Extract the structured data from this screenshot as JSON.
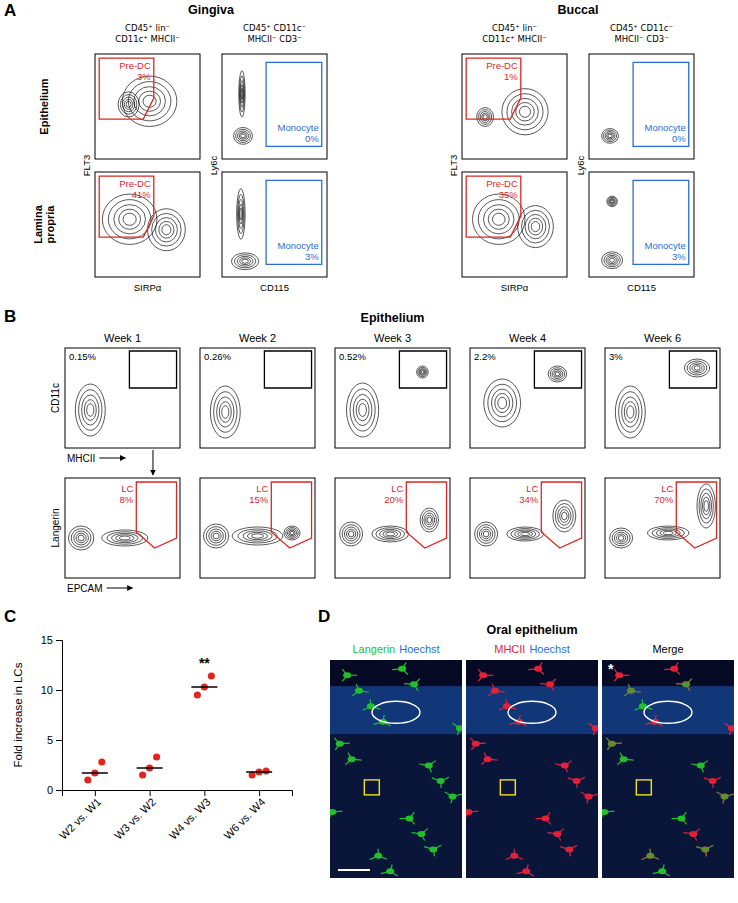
{
  "chart_data": {
    "type": "scatter",
    "panel": "C",
    "categories": [
      "W2 vs. W1",
      "W3 vs. W2",
      "W4 vs. W3",
      "W6 vs. W4"
    ],
    "values": [
      [
        1.0,
        1.7,
        2.8
      ],
      [
        1.5,
        2.2,
        3.3
      ],
      [
        9.5,
        10.3,
        11.4
      ],
      [
        1.5,
        1.8,
        1.9
      ]
    ],
    "medians": [
      1.7,
      2.2,
      10.3,
      1.8
    ],
    "ylabel": "Fold increase in LCs",
    "ylim": [
      0,
      15
    ],
    "yticks": [
      0,
      5,
      10,
      15
    ],
    "color": "#e0261f",
    "marker": "circle",
    "annotations": [
      {
        "text": "**",
        "category": "W4 vs. W3"
      }
    ]
  },
  "panel_a": {
    "label": "A",
    "xlim": [
      0,
      100
    ],
    "ylim": [
      0,
      100
    ],
    "tick_labels": false,
    "rows": [
      [
        "Epithelium"
      ],
      [
        "Lamina",
        "propria"
      ]
    ],
    "tissues": [
      {
        "title": "Gingiva",
        "columns": [
          {
            "header": [
              "CD45⁺ lin⁻",
              "CD11c⁺ MHCII⁻"
            ],
            "x_label": "SIRPα",
            "y_label": "FLT3",
            "gate_label": "Pre-DC",
            "gate_color": "#e0261f",
            "plots": [
              {
                "gate_value": "3%",
                "gate": [
                  [
                    4,
                    96
                  ],
                  [
                    56,
                    96
                  ],
                  [
                    56,
                    58
                  ],
                  [
                    46,
                    38
                  ],
                  [
                    4,
                    38
                  ]
                ],
                "populations": [
                  {
                    "x": 52,
                    "y": 55,
                    "rx": 26,
                    "ry": 24
                  },
                  {
                    "x": 32,
                    "y": 52,
                    "rx": 10,
                    "ry": 12
                  }
                ]
              },
              {
                "gate_value": "41%",
                "gate": [
                  [
                    4,
                    96
                  ],
                  [
                    56,
                    96
                  ],
                  [
                    56,
                    58
                  ],
                  [
                    46,
                    38
                  ],
                  [
                    4,
                    38
                  ]
                ],
                "populations": [
                  {
                    "x": 33,
                    "y": 55,
                    "rx": 26,
                    "ry": 24
                  },
                  {
                    "x": 68,
                    "y": 45,
                    "rx": 18,
                    "ry": 20
                  }
                ]
              }
            ]
          },
          {
            "header": [
              "CD45⁺ CD11c⁻",
              "MHCII⁻ CD3⁻"
            ],
            "x_label": "CD115",
            "y_label": "Ly6c",
            "gate_label": "Monocyte",
            "gate_color": "#2a6dd4",
            "plots": [
              {
                "gate_value": "0%",
                "gate": [
                  [
                    42,
                    92
                  ],
                  [
                    95,
                    92
                  ],
                  [
                    95,
                    12
                  ],
                  [
                    42,
                    12
                  ]
                ],
                "populations": [
                  {
                    "x": 20,
                    "y": 22,
                    "rx": 9,
                    "ry": 8
                  },
                  {
                    "x": 19,
                    "y": 62,
                    "rx": 3,
                    "ry": 22
                  }
                ]
              },
              {
                "gate_value": "3%",
                "gate": [
                  [
                    42,
                    92
                  ],
                  [
                    95,
                    92
                  ],
                  [
                    95,
                    12
                  ],
                  [
                    42,
                    12
                  ]
                ],
                "populations": [
                  {
                    "x": 22,
                    "y": 15,
                    "rx": 13,
                    "ry": 8
                  },
                  {
                    "x": 18,
                    "y": 60,
                    "rx": 4,
                    "ry": 24
                  }
                ]
              }
            ]
          }
        ]
      },
      {
        "title": "Buccal",
        "columns": [
          {
            "header": [
              "CD45⁺ lin⁻",
              "CD11c⁺ MHCII⁻"
            ],
            "x_label": "SIRPα",
            "y_label": "FLT3",
            "gate_label": "Pre-DC",
            "gate_color": "#e0261f",
            "plots": [
              {
                "gate_value": "1%",
                "gate": [
                  [
                    4,
                    96
                  ],
                  [
                    56,
                    96
                  ],
                  [
                    56,
                    58
                  ],
                  [
                    46,
                    38
                  ],
                  [
                    4,
                    38
                  ]
                ],
                "populations": [
                  {
                    "x": 22,
                    "y": 40,
                    "rx": 8,
                    "ry": 9
                  },
                  {
                    "x": 60,
                    "y": 45,
                    "rx": 22,
                    "ry": 22
                  }
                ]
              },
              {
                "gate_value": "35%",
                "gate": [
                  [
                    4,
                    96
                  ],
                  [
                    56,
                    96
                  ],
                  [
                    56,
                    58
                  ],
                  [
                    46,
                    38
                  ],
                  [
                    4,
                    38
                  ]
                ],
                "populations": [
                  {
                    "x": 35,
                    "y": 55,
                    "rx": 25,
                    "ry": 24
                  },
                  {
                    "x": 70,
                    "y": 48,
                    "rx": 17,
                    "ry": 20
                  }
                ]
              }
            ]
          },
          {
            "header": [
              "CD45⁺ CD11c⁻",
              "MHCII⁻ CD3⁻"
            ],
            "x_label": "CD115",
            "y_label": "Ly6c",
            "gate_label": "Monocyte",
            "gate_color": "#2a6dd4",
            "plots": [
              {
                "gate_value": "0%",
                "gate": [
                  [
                    42,
                    92
                  ],
                  [
                    95,
                    92
                  ],
                  [
                    95,
                    12
                  ],
                  [
                    42,
                    12
                  ]
                ],
                "populations": [
                  {
                    "x": 20,
                    "y": 22,
                    "rx": 8,
                    "ry": 7
                  }
                ]
              },
              {
                "gate_value": "3%",
                "gate": [
                  [
                    42,
                    92
                  ],
                  [
                    95,
                    92
                  ],
                  [
                    95,
                    12
                  ],
                  [
                    42,
                    12
                  ]
                ],
                "populations": [
                  {
                    "x": 22,
                    "y": 16,
                    "rx": 10,
                    "ry": 8
                  },
                  {
                    "x": 22,
                    "y": 72,
                    "rx": 5,
                    "ry": 5
                  }
                ]
              }
            ]
          }
        ]
      }
    ]
  },
  "panel_b": {
    "label": "B",
    "title": "Epithelium",
    "xlim": [
      0,
      100
    ],
    "ylim": [
      0,
      100
    ],
    "tick_labels": false,
    "weeks": [
      "Week 1",
      "Week 2",
      "Week 3",
      "Week 4",
      "Week 6"
    ],
    "rows": [
      {
        "x_label": "MHCII",
        "y_label": "CD11c",
        "gate_color": "#000000",
        "plots": [
          {
            "gate_value": "0.15%",
            "gate": [
              [
                56,
                60
              ],
              [
                97,
                60
              ],
              [
                97,
                97
              ],
              [
                56,
                97
              ]
            ],
            "populations": [
              {
                "x": 22,
                "y": 38,
                "rx": 13,
                "ry": 26
              }
            ]
          },
          {
            "gate_value": "0.26%",
            "gate": [
              [
                56,
                60
              ],
              [
                97,
                60
              ],
              [
                97,
                97
              ],
              [
                56,
                97
              ]
            ],
            "populations": [
              {
                "x": 22,
                "y": 36,
                "rx": 13,
                "ry": 26
              }
            ]
          },
          {
            "gate_value": "0.52%",
            "gate": [
              [
                56,
                60
              ],
              [
                97,
                60
              ],
              [
                97,
                97
              ],
              [
                56,
                97
              ]
            ],
            "populations": [
              {
                "x": 24,
                "y": 38,
                "rx": 14,
                "ry": 27
              },
              {
                "x": 76,
                "y": 76,
                "rx": 5,
                "ry": 6
              }
            ]
          },
          {
            "gate_value": "2.2%",
            "gate": [
              [
                56,
                60
              ],
              [
                97,
                60
              ],
              [
                97,
                97
              ],
              [
                56,
                97
              ]
            ],
            "populations": [
              {
                "x": 28,
                "y": 45,
                "rx": 16,
                "ry": 24
              },
              {
                "x": 76,
                "y": 74,
                "rx": 8,
                "ry": 8
              }
            ]
          },
          {
            "gate_value": "3%",
            "gate": [
              [
                56,
                60
              ],
              [
                97,
                60
              ],
              [
                97,
                97
              ],
              [
                56,
                97
              ]
            ],
            "populations": [
              {
                "x": 22,
                "y": 36,
                "rx": 13,
                "ry": 26
              },
              {
                "x": 80,
                "y": 80,
                "rx": 11,
                "ry": 9
              }
            ]
          }
        ]
      },
      {
        "x_label": "EPCAM",
        "y_label": "Langerin",
        "gate_label": "LC",
        "gate_color": "#e0261f",
        "plots": [
          {
            "gate_value": "8%",
            "gate": [
              [
                62,
                96
              ],
              [
                97,
                96
              ],
              [
                97,
                40
              ],
              [
                78,
                30
              ],
              [
                62,
                46
              ]
            ],
            "populations": [
              {
                "x": 14,
                "y": 40,
                "rx": 11,
                "ry": 12
              },
              {
                "x": 52,
                "y": 40,
                "rx": 20,
                "ry": 8
              }
            ]
          },
          {
            "gate_value": "15%",
            "gate": [
              [
                62,
                96
              ],
              [
                97,
                96
              ],
              [
                97,
                40
              ],
              [
                78,
                30
              ],
              [
                62,
                46
              ]
            ],
            "populations": [
              {
                "x": 14,
                "y": 42,
                "rx": 11,
                "ry": 12
              },
              {
                "x": 50,
                "y": 42,
                "rx": 22,
                "ry": 9
              },
              {
                "x": 80,
                "y": 45,
                "rx": 7,
                "ry": 7
              }
            ]
          },
          {
            "gate_value": "20%",
            "gate": [
              [
                62,
                96
              ],
              [
                97,
                96
              ],
              [
                97,
                40
              ],
              [
                78,
                30
              ],
              [
                62,
                46
              ]
            ],
            "populations": [
              {
                "x": 14,
                "y": 44,
                "rx": 10,
                "ry": 12
              },
              {
                "x": 48,
                "y": 44,
                "rx": 16,
                "ry": 8
              },
              {
                "x": 82,
                "y": 58,
                "rx": 8,
                "ry": 12
              }
            ]
          },
          {
            "gate_value": "34%",
            "gate": [
              [
                62,
                96
              ],
              [
                97,
                96
              ],
              [
                97,
                40
              ],
              [
                78,
                30
              ],
              [
                62,
                46
              ]
            ],
            "populations": [
              {
                "x": 14,
                "y": 44,
                "rx": 10,
                "ry": 12
              },
              {
                "x": 48,
                "y": 44,
                "rx": 16,
                "ry": 7
              },
              {
                "x": 82,
                "y": 62,
                "rx": 10,
                "ry": 16
              }
            ]
          },
          {
            "gate_value": "70%",
            "gate": [
              [
                62,
                96
              ],
              [
                97,
                96
              ],
              [
                97,
                40
              ],
              [
                78,
                30
              ],
              [
                62,
                46
              ]
            ],
            "populations": [
              {
                "x": 14,
                "y": 40,
                "rx": 10,
                "ry": 10
              },
              {
                "x": 55,
                "y": 45,
                "rx": 18,
                "ry": 7
              },
              {
                "x": 88,
                "y": 72,
                "rx": 8,
                "ry": 22
              }
            ]
          }
        ]
      }
    ]
  },
  "panel_d": {
    "label": "D",
    "title": "Oral epithelium",
    "asterisk": "*",
    "images": [
      {
        "channels": [
          {
            "text": "Langerin",
            "color": "#22c02a"
          },
          {
            "text": "Hoechst",
            "color": "#1f6fe0"
          }
        ]
      },
      {
        "channels": [
          {
            "text": "MHCII",
            "color": "#e5213a"
          },
          {
            "text": "Hoechst",
            "color": "#1f6fe0"
          }
        ]
      },
      {
        "channels": [
          {
            "text": "Merge",
            "color": "#000000"
          }
        ]
      }
    ]
  }
}
